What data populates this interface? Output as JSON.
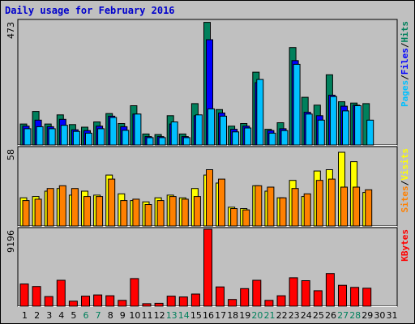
{
  "title": "Daily usage for February 2016",
  "colors": {
    "hits": "#00805c",
    "files": "#0000ff",
    "pages": "#00c0ff",
    "visits": "#ffff00",
    "sites": "#ff8000",
    "kbytes": "#ff0000",
    "weekend_day": "#00805c",
    "weekday": "#000000"
  },
  "chart_data": [
    {
      "type": "bar",
      "title": "",
      "ymax_label": "473",
      "ylim": [
        0,
        473
      ],
      "legend": [
        {
          "text": "Pages",
          "color": "#00c0ff"
        },
        {
          "text": "Files",
          "color": "#0000ff"
        },
        {
          "text": "Hits",
          "color": "#00805c"
        }
      ],
      "categories": [
        "1",
        "2",
        "3",
        "4",
        "5",
        "6",
        "7",
        "8",
        "9",
        "10",
        "11",
        "12",
        "13",
        "14",
        "15",
        "16",
        "17",
        "18",
        "19",
        "20",
        "21",
        "22",
        "23",
        "24",
        "25",
        "26",
        "27",
        "28",
        "29",
        "30",
        "31"
      ],
      "series": [
        {
          "name": "Hits",
          "values": [
            80,
            128,
            80,
            115,
            78,
            68,
            88,
            120,
            82,
            150,
            42,
            40,
            112,
            42,
            158,
            468,
            135,
            72,
            82,
            278,
            60,
            85,
            372,
            182,
            152,
            268,
            165,
            160,
            158,
            0,
            0
          ]
        },
        {
          "name": "Files",
          "values": [
            72,
            95,
            70,
            98,
            58,
            55,
            72,
            110,
            70,
            118,
            32,
            32,
            80,
            32,
            112,
            402,
            122,
            60,
            72,
            238,
            55,
            62,
            322,
            125,
            112,
            190,
            148,
            152,
            0,
            0,
            0
          ]
        },
        {
          "name": "Pages",
          "values": [
            62,
            70,
            62,
            75,
            52,
            45,
            62,
            105,
            56,
            118,
            28,
            28,
            88,
            28,
            115,
            138,
            110,
            50,
            65,
            250,
            45,
            55,
            308,
            118,
            95,
            185,
            130,
            150,
            95,
            0,
            0
          ]
        }
      ]
    },
    {
      "type": "bar",
      "title": "",
      "ymax_label": "58",
      "ylim": [
        0,
        58
      ],
      "legend": [
        {
          "text": "Sites",
          "color": "#ff8000"
        },
        {
          "text": "Visits",
          "color": "#ffff00"
        }
      ],
      "categories": [
        "1",
        "2",
        "3",
        "4",
        "5",
        "6",
        "7",
        "8",
        "9",
        "10",
        "11",
        "12",
        "13",
        "14",
        "15",
        "16",
        "17",
        "18",
        "19",
        "20",
        "21",
        "22",
        "23",
        "24",
        "25",
        "26",
        "27",
        "28",
        "29",
        "30",
        "31"
      ],
      "series": [
        {
          "name": "Visits",
          "values": [
            21,
            22,
            26,
            28,
            23,
            26,
            23,
            38,
            24,
            19,
            18,
            21,
            23,
            21,
            28,
            38,
            32,
            14,
            13,
            30,
            26,
            21,
            34,
            22,
            41,
            42,
            55,
            48,
            25,
            0,
            0
          ]
        },
        {
          "name": "Sites",
          "values": [
            19,
            20,
            28,
            30,
            28,
            22,
            22,
            35,
            19,
            20,
            16,
            19,
            22,
            20,
            22,
            42,
            35,
            13,
            12,
            30,
            29,
            21,
            28,
            24,
            34,
            35,
            29,
            29,
            27,
            0,
            0
          ]
        }
      ]
    },
    {
      "type": "bar",
      "title": "",
      "ymax_label": "9196",
      "ylim": [
        0,
        9196
      ],
      "legend": [
        {
          "text": "KBytes",
          "color": "#ff0000"
        }
      ],
      "categories": [
        "1",
        "2",
        "3",
        "4",
        "5",
        "6",
        "7",
        "8",
        "9",
        "10",
        "11",
        "12",
        "13",
        "14",
        "15",
        "16",
        "17",
        "18",
        "19",
        "20",
        "21",
        "22",
        "23",
        "24",
        "25",
        "26",
        "27",
        "28",
        "29",
        "30",
        "31"
      ],
      "series": [
        {
          "name": "KBytes",
          "values": [
            2650,
            2350,
            1150,
            3100,
            600,
            1200,
            1350,
            1250,
            700,
            3300,
            300,
            350,
            1200,
            1100,
            1450,
            9196,
            2300,
            800,
            2100,
            3100,
            700,
            1250,
            3400,
            3050,
            1850,
            3900,
            2500,
            2250,
            2150,
            0,
            0
          ]
        }
      ]
    }
  ],
  "days": [
    {
      "label": "1",
      "weekend": false
    },
    {
      "label": "2",
      "weekend": false
    },
    {
      "label": "3",
      "weekend": false
    },
    {
      "label": "4",
      "weekend": false
    },
    {
      "label": "5",
      "weekend": false
    },
    {
      "label": "6",
      "weekend": true
    },
    {
      "label": "7",
      "weekend": true
    },
    {
      "label": "8",
      "weekend": false
    },
    {
      "label": "9",
      "weekend": false
    },
    {
      "label": "10",
      "weekend": false
    },
    {
      "label": "11",
      "weekend": false
    },
    {
      "label": "12",
      "weekend": false
    },
    {
      "label": "13",
      "weekend": true
    },
    {
      "label": "14",
      "weekend": true
    },
    {
      "label": "15",
      "weekend": false
    },
    {
      "label": "16",
      "weekend": false
    },
    {
      "label": "17",
      "weekend": false
    },
    {
      "label": "18",
      "weekend": false
    },
    {
      "label": "19",
      "weekend": false
    },
    {
      "label": "20",
      "weekend": true
    },
    {
      "label": "21",
      "weekend": true
    },
    {
      "label": "22",
      "weekend": false
    },
    {
      "label": "23",
      "weekend": false
    },
    {
      "label": "24",
      "weekend": false
    },
    {
      "label": "25",
      "weekend": false
    },
    {
      "label": "26",
      "weekend": false
    },
    {
      "label": "27",
      "weekend": true
    },
    {
      "label": "28",
      "weekend": true
    },
    {
      "label": "29",
      "weekend": false
    },
    {
      "label": "30",
      "weekend": false
    },
    {
      "label": "31",
      "weekend": false
    }
  ]
}
